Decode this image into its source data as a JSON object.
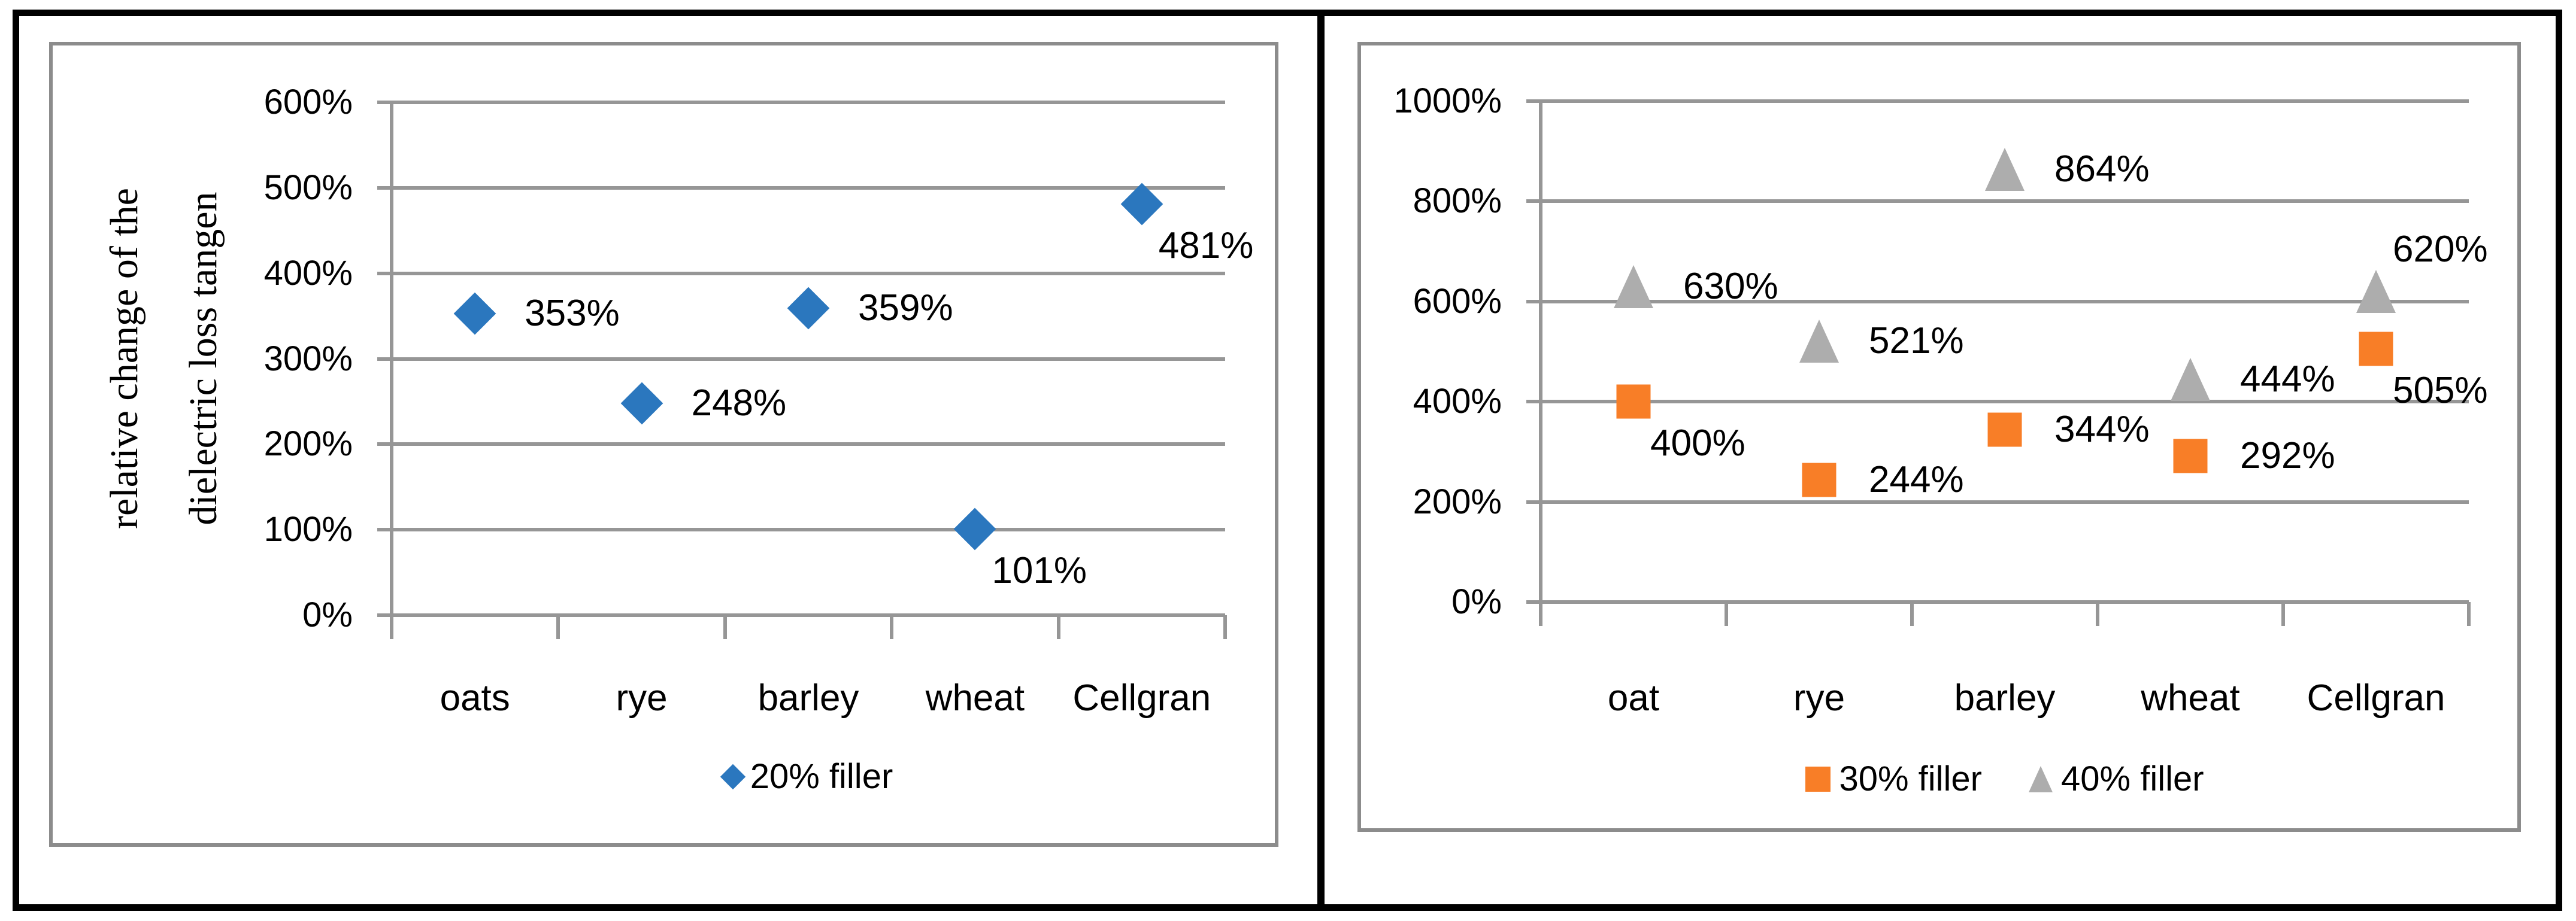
{
  "figure": {
    "description": "Two scatter charts of relative change of the dielectric loss tangent for grain fillers",
    "border_color": "#000000",
    "chart_frame_color": "#8c8c8c",
    "gridline_color": "#969696"
  },
  "chart_data": [
    {
      "type": "scatter",
      "title": "",
      "ylabel_lines": [
        "relative change of the",
        "dielectric loss tangen"
      ],
      "categories": [
        "oats",
        "rye",
        "barley",
        "wheat",
        "Cellgran"
      ],
      "y_max": 600,
      "y_step": 100,
      "ylim": [
        0,
        600
      ],
      "y_ticks": [
        "0%",
        "100%",
        "200%",
        "300%",
        "400%",
        "500%",
        "600%"
      ],
      "grid": true,
      "legend_position": "bottom",
      "series": [
        {
          "name": "20% filler",
          "marker": "diamond",
          "color": "#2b77be",
          "values": [
            353,
            248,
            359,
            101,
            481
          ],
          "labels": [
            "353%",
            "248%",
            "359%",
            "101%",
            "481%"
          ],
          "label_pos": [
            "right",
            "right",
            "right",
            "below-right",
            "below-right"
          ]
        }
      ]
    },
    {
      "type": "scatter",
      "title": "",
      "ylabel_lines": [],
      "categories": [
        "oat",
        "rye",
        "barley",
        "wheat",
        "Cellgran"
      ],
      "y_max": 1000,
      "y_step": 200,
      "ylim": [
        0,
        1000
      ],
      "y_ticks": [
        "0%",
        "200%",
        "400%",
        "600%",
        "800%",
        "1000%"
      ],
      "grid": true,
      "legend_position": "bottom",
      "series": [
        {
          "name": "30% filler",
          "marker": "square",
          "color": "#f87e27",
          "values": [
            400,
            244,
            344,
            292,
            505
          ],
          "labels": [
            "400%",
            "244%",
            "344%",
            "292%",
            "505%"
          ],
          "label_pos": [
            "below-right",
            "right",
            "right",
            "right",
            "below-right"
          ]
        },
        {
          "name": "40% filler",
          "marker": "triangle",
          "color": "#adadad",
          "values": [
            630,
            521,
            864,
            444,
            620
          ],
          "labels": [
            "630%",
            "521%",
            "864%",
            "444%",
            "620%"
          ],
          "label_pos": [
            "right",
            "right",
            "right",
            "right",
            "above-right"
          ]
        }
      ]
    }
  ]
}
